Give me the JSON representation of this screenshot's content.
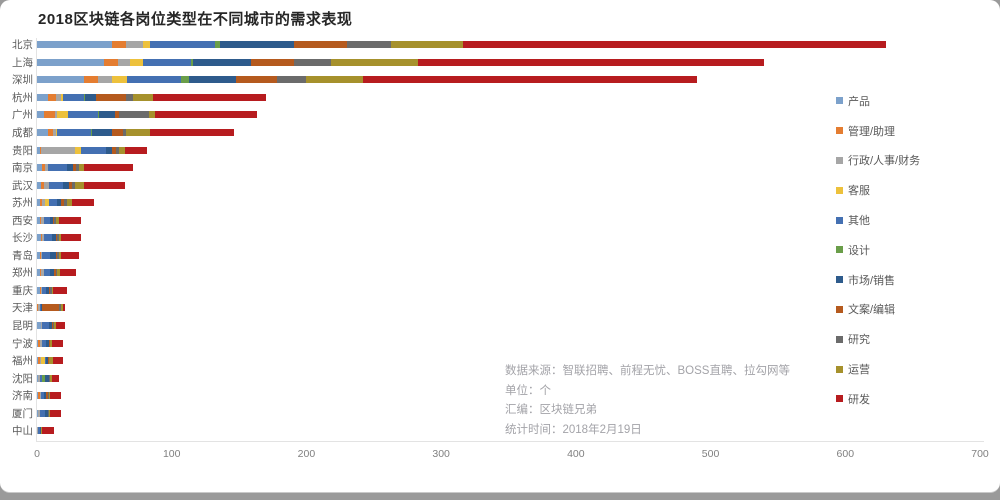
{
  "title": "2018区块链各岗位类型在不同城市的需求表现",
  "notes": {
    "lines": [
      "数据来源：智联招聘、前程无忧、BOSS直聘、拉勾网等",
      "单位：个",
      "汇编：区块链兄弟",
      "统计时间：2018年2月19日"
    ]
  },
  "chart_data": {
    "type": "bar",
    "orientation": "horizontal",
    "stacked": true,
    "title": "2018区块链各岗位类型在不同城市的需求表现",
    "xlabel": "",
    "ylabel": "",
    "xlim": [
      0,
      700
    ],
    "xticks": [
      0,
      100,
      200,
      300,
      400,
      500,
      600,
      700
    ],
    "grid": false,
    "legend_position": "right",
    "categories": [
      "北京",
      "上海",
      "深圳",
      "杭州",
      "广州",
      "成都",
      "贵阳",
      "南京",
      "武汉",
      "苏州",
      "西安",
      "长沙",
      "青岛",
      "郑州",
      "重庆",
      "天津",
      "昆明",
      "宁波",
      "福州",
      "沈阳",
      "济南",
      "厦门",
      "中山"
    ],
    "totals_estimated": [
      630,
      540,
      490,
      170,
      163,
      146,
      82,
      71,
      65,
      42,
      33,
      33,
      31,
      29,
      22,
      21,
      21,
      19,
      19,
      16,
      18,
      18,
      13
    ],
    "series": [
      {
        "name": "产品",
        "color": "#7CA1CB",
        "values": [
          56,
          50,
          35,
          8,
          5,
          8,
          2,
          4,
          3,
          2,
          2,
          3,
          2,
          2,
          2,
          0,
          3,
          1,
          1,
          1,
          1,
          1,
          0
        ]
      },
      {
        "name": "管理/助理",
        "color": "#E47D31",
        "values": [
          10,
          10,
          10,
          6,
          8,
          4,
          1,
          2,
          2,
          2,
          1,
          1,
          1,
          1,
          1,
          1,
          0,
          1,
          1,
          0,
          1,
          0,
          0
        ]
      },
      {
        "name": "行政/人事/财务",
        "color": "#A6A6A6",
        "values": [
          13,
          9,
          11,
          4,
          2,
          2,
          25,
          2,
          4,
          2,
          2,
          1,
          1,
          2,
          1,
          1,
          1,
          2,
          1,
          1,
          1,
          1,
          1
        ]
      },
      {
        "name": "客服",
        "color": "#EDC13C",
        "values": [
          5,
          10,
          11,
          1,
          8,
          1,
          5,
          0,
          0,
          3,
          0,
          0,
          0,
          0,
          0,
          0,
          0,
          0,
          3,
          0,
          0,
          0,
          0
        ]
      },
      {
        "name": "其他",
        "color": "#4470B2",
        "values": [
          48,
          35,
          40,
          16,
          22,
          25,
          18,
          14,
          10,
          6,
          5,
          6,
          6,
          5,
          3,
          1,
          5,
          3,
          1,
          2,
          2,
          4,
          1
        ]
      },
      {
        "name": "设计",
        "color": "#6A9E49",
        "values": [
          4,
          2,
          6,
          1,
          1,
          1,
          0,
          0,
          0,
          0,
          0,
          0,
          0,
          0,
          0,
          0,
          0,
          0,
          0,
          2,
          0,
          0,
          0
        ]
      },
      {
        "name": "市场/销售",
        "color": "#2E5B8C",
        "values": [
          55,
          43,
          35,
          8,
          12,
          15,
          5,
          5,
          5,
          3,
          2,
          3,
          4,
          3,
          2,
          1,
          2,
          2,
          1,
          3,
          2,
          2,
          1
        ]
      },
      {
        "name": "文案/编辑",
        "color": "#B55A1E",
        "values": [
          39,
          32,
          30,
          22,
          3,
          8,
          3,
          2,
          2,
          2,
          1,
          1,
          1,
          1,
          1,
          12,
          1,
          1,
          1,
          0,
          1,
          0,
          0
        ]
      },
      {
        "name": "研究",
        "color": "#6B6B6B",
        "values": [
          33,
          27,
          22,
          5,
          22,
          2,
          2,
          2,
          2,
          2,
          1,
          1,
          1,
          1,
          1,
          2,
          1,
          0,
          0,
          1,
          1,
          1,
          0
        ]
      },
      {
        "name": "运营",
        "color": "#A6912C",
        "values": [
          53,
          65,
          42,
          15,
          5,
          18,
          4,
          4,
          7,
          4,
          2,
          2,
          2,
          2,
          1,
          1,
          1,
          1,
          3,
          1,
          1,
          1,
          1
        ]
      },
      {
        "name": "研发",
        "color": "#B71C1F",
        "values": [
          314,
          257,
          248,
          84,
          75,
          62,
          17,
          36,
          30,
          16,
          17,
          15,
          13,
          12,
          10,
          2,
          7,
          8,
          7,
          5,
          8,
          8,
          9
        ]
      }
    ]
  }
}
